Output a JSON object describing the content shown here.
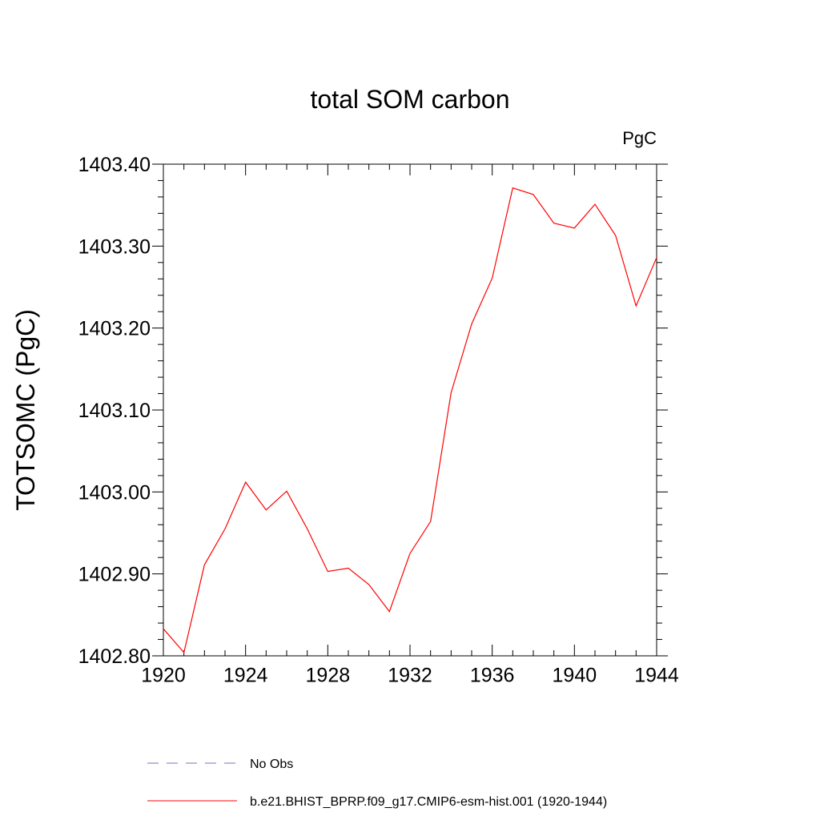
{
  "chart_data": {
    "type": "line",
    "title": "total SOM carbon",
    "units_label": "PgC",
    "ylabel": "TOTSOMC  (PgC)",
    "xlabel": "",
    "xlim": [
      1920,
      1944
    ],
    "ylim": [
      1402.8,
      1403.4
    ],
    "x_ticks": [
      1920,
      1924,
      1928,
      1932,
      1936,
      1940,
      1944
    ],
    "x_tick_labels": [
      "1920",
      "1924",
      "1928",
      "1932",
      "1936",
      "1940",
      "1944"
    ],
    "y_ticks": [
      1402.8,
      1402.9,
      1403.0,
      1403.1,
      1403.2,
      1403.3,
      1403.4
    ],
    "y_tick_labels": [
      "1402.80",
      "1402.90",
      "1403.00",
      "1403.10",
      "1403.20",
      "1403.30",
      "1403.40"
    ],
    "grid": false,
    "legend_position": "bottom",
    "series": [
      {
        "name": "b.e21.BHIST_BPRP.f09_g17.CMIP6-esm-hist.001 (1920-1944)",
        "color": "#ff0000",
        "style": "solid",
        "x": [
          1920,
          1921,
          1922,
          1923,
          1924,
          1925,
          1926,
          1927,
          1928,
          1929,
          1930,
          1931,
          1932,
          1933,
          1934,
          1935,
          1936,
          1937,
          1938,
          1939,
          1940,
          1941,
          1942,
          1943,
          1944
        ],
        "y": [
          1402.833,
          1402.804,
          1402.911,
          1402.955,
          1403.012,
          1402.978,
          1403.001,
          1402.955,
          1402.903,
          1402.907,
          1402.887,
          1402.854,
          1402.925,
          1402.964,
          1403.121,
          1403.205,
          1403.261,
          1403.371,
          1403.363,
          1403.328,
          1403.322,
          1403.351,
          1403.313,
          1403.227,
          1403.286
        ]
      }
    ],
    "legend": [
      {
        "label": "No Obs",
        "color": "#7b6fb8",
        "style": "dashed"
      },
      {
        "label": "b.e21.BHIST_BPRP.f09_g17.CMIP6-esm-hist.001 (1920-1944)",
        "color": "#ff0000",
        "style": "solid"
      }
    ]
  }
}
